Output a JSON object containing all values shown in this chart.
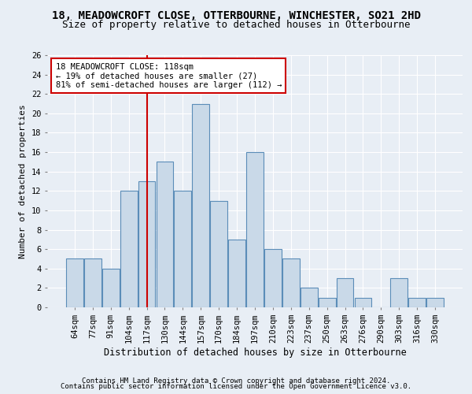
{
  "title1": "18, MEADOWCROFT CLOSE, OTTERBOURNE, WINCHESTER, SO21 2HD",
  "title2": "Size of property relative to detached houses in Otterbourne",
  "xlabel": "Distribution of detached houses by size in Otterbourne",
  "ylabel": "Number of detached properties",
  "categories": [
    "64sqm",
    "77sqm",
    "91sqm",
    "104sqm",
    "117sqm",
    "130sqm",
    "144sqm",
    "157sqm",
    "170sqm",
    "184sqm",
    "197sqm",
    "210sqm",
    "223sqm",
    "237sqm",
    "250sqm",
    "263sqm",
    "276sqm",
    "290sqm",
    "303sqm",
    "316sqm",
    "330sqm"
  ],
  "values": [
    5,
    5,
    4,
    12,
    13,
    15,
    12,
    21,
    11,
    7,
    16,
    6,
    5,
    2,
    1,
    3,
    1,
    0,
    3,
    1,
    1
  ],
  "bar_color": "#c9d9e8",
  "bar_edge_color": "#5b8db8",
  "vline_x_index": 4,
  "vline_color": "#cc0000",
  "annotation_box_text": "18 MEADOWCROFT CLOSE: 118sqm\n← 19% of detached houses are smaller (27)\n81% of semi-detached houses are larger (112) →",
  "ylim": [
    0,
    26
  ],
  "yticks": [
    0,
    2,
    4,
    6,
    8,
    10,
    12,
    14,
    16,
    18,
    20,
    22,
    24,
    26
  ],
  "footer1": "Contains HM Land Registry data © Crown copyright and database right 2024.",
  "footer2": "Contains public sector information licensed under the Open Government Licence v3.0.",
  "bg_color": "#e8eef5",
  "plot_bg_color": "#e8eef5",
  "grid_color": "#ffffff",
  "title1_fontsize": 10,
  "title2_fontsize": 9,
  "xlabel_fontsize": 8.5,
  "ylabel_fontsize": 8,
  "tick_fontsize": 7.5,
  "annotation_fontsize": 7.5,
  "footer_fontsize": 6.5
}
